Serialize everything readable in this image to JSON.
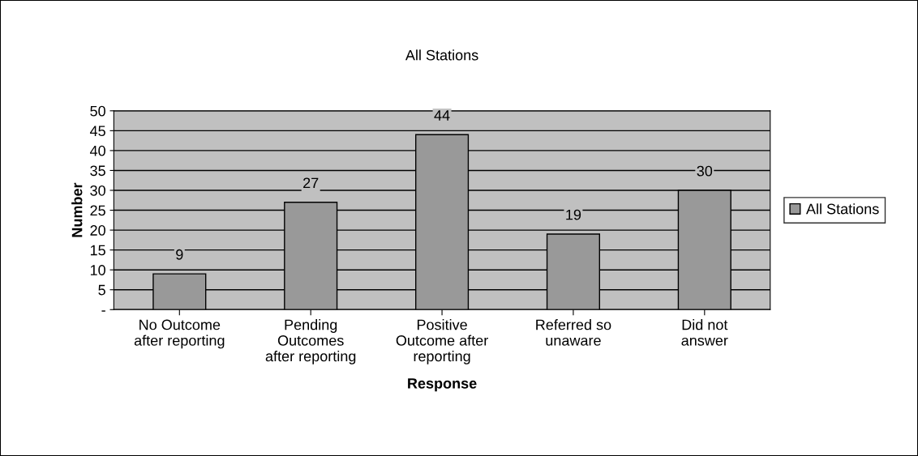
{
  "chart_data": {
    "type": "bar",
    "title": "All Stations",
    "xlabel": "Response",
    "ylabel": "Number",
    "categories": [
      "No Outcome\nafter reporting",
      "Pending\nOutcomes\nafter reporting",
      "Positive\nOutcome after\nreporting",
      "Referred so\nunaware",
      "Did not\nanswer"
    ],
    "series": [
      {
        "name": "All Stations",
        "color": "#999999",
        "values": [
          9,
          27,
          44,
          19,
          30
        ]
      }
    ],
    "ylim": [
      0,
      50
    ],
    "yticks": [
      {
        "value": 0,
        "label": "-"
      },
      5,
      10,
      15,
      20,
      25,
      30,
      35,
      40,
      45,
      50
    ],
    "grid": "y",
    "legend": "right",
    "data_labels": true
  }
}
